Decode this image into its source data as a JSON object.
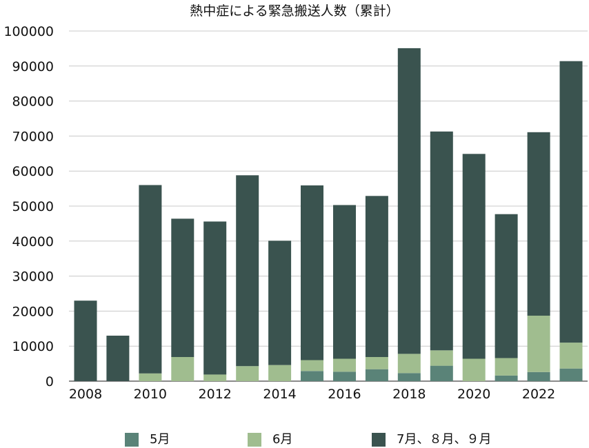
{
  "chart_data": {
    "type": "bar",
    "stacked": true,
    "title": "熱中症による緊急搬送人数（累計）",
    "xlabel": "",
    "ylabel": "",
    "ylim": [
      0,
      100000
    ],
    "yticks": [
      "0",
      "10000",
      "20000",
      "30000",
      "40000",
      "50000",
      "60000",
      "70000",
      "80000",
      "90000",
      "100000"
    ],
    "xtick_labels": [
      "2008",
      "2010",
      "2012",
      "2014",
      "2016",
      "2018",
      "2020",
      "2022"
    ],
    "grid": true,
    "legend_position": "bottom",
    "categories": [
      "2008",
      "2009",
      "2010",
      "2011",
      "2012",
      "2013",
      "2014",
      "2015",
      "2016",
      "2017",
      "2018",
      "2019",
      "2020",
      "2021",
      "2022",
      "2023"
    ],
    "series": [
      {
        "name": "5月",
        "color": "#5a8378",
        "values": [
          0,
          0,
          0,
          0,
          0,
          0,
          0,
          2900,
          2700,
          3400,
          2300,
          4400,
          0,
          1600,
          2600,
          3600
        ]
      },
      {
        "name": "6月",
        "color": "#a0bd8f",
        "values": [
          0,
          0,
          2200,
          6900,
          1900,
          4300,
          4600,
          3100,
          3700,
          3500,
          5500,
          4400,
          6400,
          5000,
          16100,
          7400
        ]
      },
      {
        "name": "7月、８月、９月",
        "color": "#3a534f",
        "values": [
          23000,
          13000,
          53800,
          39500,
          43700,
          54500,
          35500,
          49900,
          43900,
          46000,
          87300,
          62500,
          58500,
          41100,
          52400,
          80400
        ]
      }
    ]
  }
}
